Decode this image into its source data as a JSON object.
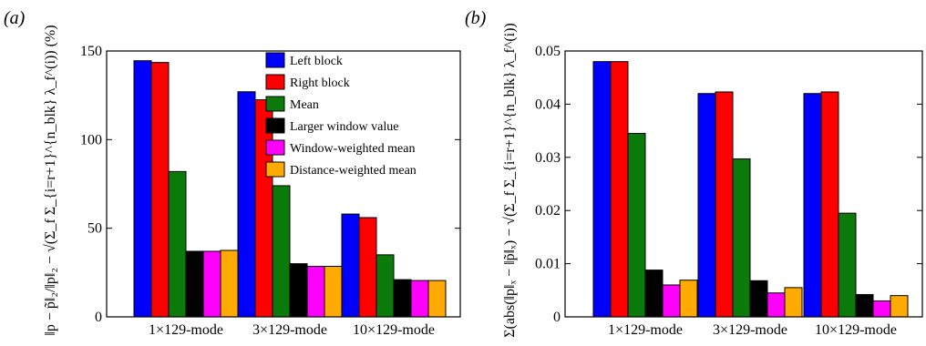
{
  "colors": {
    "Left block": "#0000ff",
    "Right block": "#ff0000",
    "Mean": "#0a7a0a",
    "Larger window value": "#000000",
    "Window-weighted mean": "#ff00ff",
    "Distance-weighted mean": "#ffaa00"
  },
  "chart_data": [
    {
      "type": "bar",
      "panel_label": "(a)",
      "ylabel": "‖p − p̃‖₂/‖p‖₂ − √(Σ_f Σ_{i=r+1}^{n_blk} λ_f^(i)) (%)",
      "ylim": [
        0,
        150
      ],
      "yticks": [
        "0",
        "50",
        "100",
        "150"
      ],
      "categories": [
        "1×129-mode",
        "3×129-mode",
        "10×129-mode"
      ],
      "legend_position": "top-right",
      "series": [
        {
          "name": "Left block",
          "values": [
            144.5,
            127,
            58
          ]
        },
        {
          "name": "Right block",
          "values": [
            143.5,
            122.5,
            56
          ]
        },
        {
          "name": "Mean",
          "values": [
            82,
            74,
            35
          ]
        },
        {
          "name": "Larger window value",
          "values": [
            37,
            30,
            21
          ]
        },
        {
          "name": "Window-weighted mean",
          "values": [
            37,
            28.5,
            20.5
          ]
        },
        {
          "name": "Distance-weighted mean",
          "values": [
            37.5,
            28.5,
            20.5
          ]
        }
      ]
    },
    {
      "type": "bar",
      "panel_label": "(b)",
      "ylabel": "Σ(abs(‖p‖ₓ − ‖p̃‖ₓ) − √(Σ_f Σ_{i=r+1}^{n_blk} λ_f^(i))",
      "ylim": [
        0,
        0.05
      ],
      "yticks": [
        "0",
        "0.01",
        "0.02",
        "0.03",
        "0.04",
        "0.05"
      ],
      "categories": [
        "1×129-mode",
        "3×129-mode",
        "10×129-mode"
      ],
      "series": [
        {
          "name": "Left block",
          "values": [
            0.048,
            0.042,
            0.042
          ]
        },
        {
          "name": "Right block",
          "values": [
            0.048,
            0.0423,
            0.0423
          ]
        },
        {
          "name": "Mean",
          "values": [
            0.0345,
            0.0297,
            0.0195
          ]
        },
        {
          "name": "Larger window value",
          "values": [
            0.0088,
            0.0068,
            0.0042
          ]
        },
        {
          "name": "Window-weighted mean",
          "values": [
            0.006,
            0.0045,
            0.003
          ]
        },
        {
          "name": "Distance-weighted mean",
          "values": [
            0.0069,
            0.0055,
            0.004
          ]
        }
      ]
    }
  ]
}
